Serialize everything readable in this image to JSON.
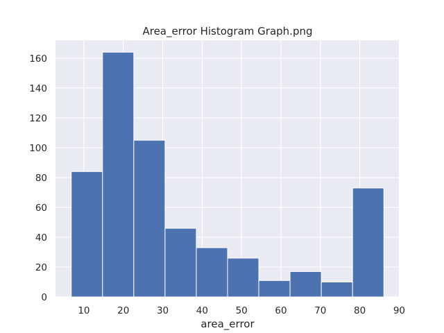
{
  "chart_data": {
    "type": "bar",
    "title": "Area_error Histogram Graph.png",
    "xlabel": "area_error",
    "ylabel": "",
    "bins": [
      {
        "x0": 6.8,
        "x1": 14.73,
        "count": 84
      },
      {
        "x0": 14.73,
        "x1": 22.66,
        "count": 164
      },
      {
        "x0": 22.66,
        "x1": 30.59,
        "count": 105
      },
      {
        "x0": 30.59,
        "x1": 38.52,
        "count": 46
      },
      {
        "x0": 38.52,
        "x1": 46.45,
        "count": 33
      },
      {
        "x0": 46.45,
        "x1": 54.38,
        "count": 26
      },
      {
        "x0": 54.38,
        "x1": 62.31,
        "count": 11
      },
      {
        "x0": 62.31,
        "x1": 70.24,
        "count": 17
      },
      {
        "x0": 70.24,
        "x1": 78.17,
        "count": 10
      },
      {
        "x0": 78.17,
        "x1": 86.1,
        "count": 73
      }
    ],
    "xlim": [
      2.8,
      90.1
    ],
    "ylim": [
      0,
      172
    ],
    "xticks": [
      10,
      20,
      30,
      40,
      50,
      60,
      70,
      80,
      90
    ],
    "yticks": [
      0,
      20,
      40,
      60,
      80,
      100,
      120,
      140,
      160
    ],
    "grid": true,
    "bar_color": "#4c72b0",
    "background_color": "#eaeaf2",
    "grid_color": "#ffffff"
  }
}
